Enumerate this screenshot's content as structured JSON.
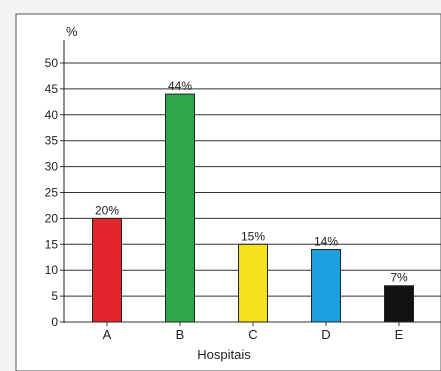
{
  "chart_data": {
    "type": "bar",
    "title": "",
    "xlabel": "Hospitais",
    "ylabel": "%",
    "ylim": [
      0,
      50
    ],
    "yticks": [
      0,
      5,
      10,
      15,
      20,
      25,
      30,
      35,
      40,
      45,
      50
    ],
    "grid": true,
    "categories": [
      "A",
      "B",
      "C",
      "D",
      "E"
    ],
    "values": [
      20,
      44,
      15,
      14,
      7
    ],
    "data_labels": [
      "20%",
      "44%",
      "15%",
      "14%",
      "7%"
    ],
    "colors": [
      "#e3262b",
      "#2ea84a",
      "#f5e21b",
      "#1e9fe0",
      "#111111"
    ]
  }
}
